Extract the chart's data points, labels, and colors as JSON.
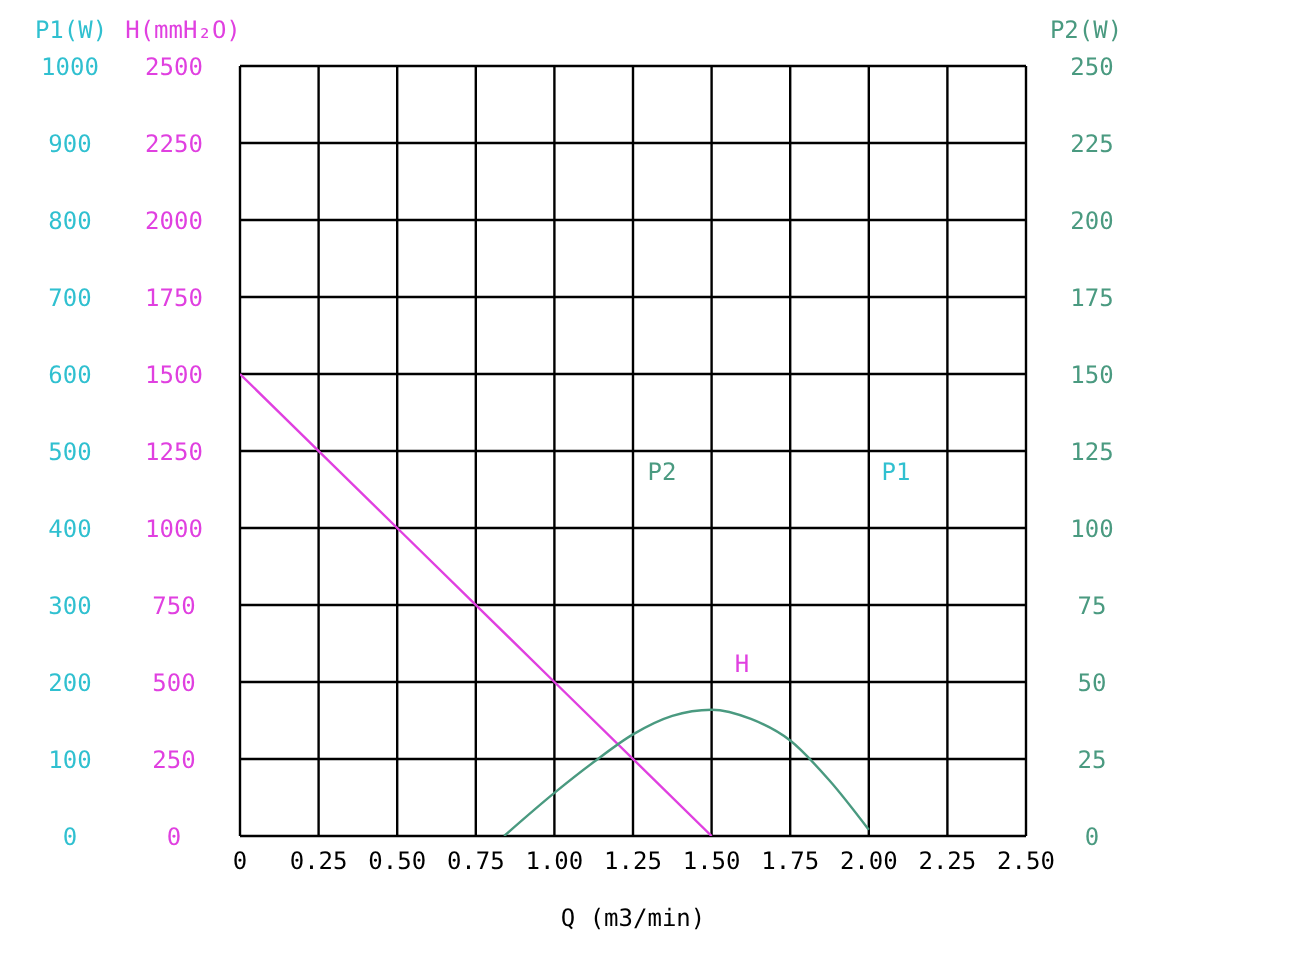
{
  "chart_data": {
    "type": "line",
    "xlabel": "Q (m3/min)",
    "ylabel": "H(mmH₂O)",
    "y2label": "P2(W)",
    "y3label": "P1(W)",
    "xlim": [
      0,
      2.5
    ],
    "xticks": [
      0,
      0.25,
      {
        "value": 0.5,
        "label": "0.50"
      },
      0.75,
      {
        "value": 1,
        "label": "1.00"
      },
      1.25,
      {
        "value": 1.5,
        "label": "1.50"
      },
      1.75,
      {
        "value": 2,
        "label": "2.00"
      },
      2.25,
      {
        "value": 2.5,
        "label": "2.50"
      }
    ],
    "ylim": [
      0,
      2500
    ],
    "yticks": [
      0,
      250,
      500,
      750,
      1000,
      1250,
      1500,
      1750,
      2000,
      2250,
      2500
    ],
    "y2lim": [
      0,
      250
    ],
    "y2ticks": [
      0,
      25,
      50,
      75,
      100,
      125,
      150,
      175,
      200,
      225,
      250
    ],
    "y3lim": [
      0,
      1000
    ],
    "y3ticks": [
      0,
      100,
      200,
      300,
      400,
      500,
      600,
      700,
      800,
      900,
      1000
    ],
    "series": [
      {
        "color": "#e040e0",
        "x": [
          0,
          0.5,
          1.0,
          1.5
        ],
        "values": [
          1500,
          1000,
          500,
          0
        ]
      },
      {
        "color": "#4a9a80",
        "axis": "y2",
        "type": "line",
        "x": [
          0.84,
          1.0,
          1.125,
          1.25,
          1.375,
          1.5,
          1.625,
          1.75,
          1.875,
          2.0
        ],
        "values": [
          0,
          14,
          24,
          33,
          39,
          41,
          38,
          31,
          18,
          2
        ]
      }
    ],
    "annotations": [
      "P2",
      "P1",
      "H"
    ],
    "grid": true,
    "marker": "none",
    "line_style": "solid"
  }
}
